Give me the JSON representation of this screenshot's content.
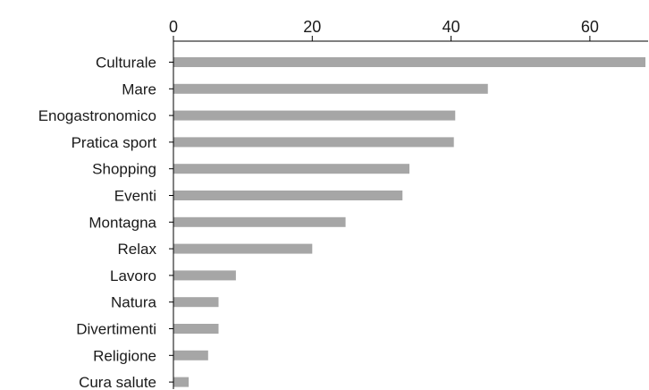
{
  "chart_data": {
    "type": "bar",
    "orientation": "horizontal",
    "title": "",
    "xlabel": "",
    "ylabel": "",
    "x_axis_position": "top",
    "xlim": [
      0,
      68
    ],
    "xticks": [
      0,
      20,
      40,
      60
    ],
    "grid": false,
    "bar_color": "#a6a6a6",
    "categories": [
      "Culturale",
      "Mare",
      "Enogastronomico",
      "Pratica sport",
      "Shopping",
      "Eventi",
      "Montagna",
      "Relax",
      "Lavoro",
      "Natura",
      "Divertimenti",
      "Religione",
      "Cura salute"
    ],
    "values": [
      68,
      45.3,
      40.6,
      40.4,
      34,
      33,
      24.8,
      20,
      9,
      6.5,
      6.5,
      5,
      2.2
    ]
  }
}
